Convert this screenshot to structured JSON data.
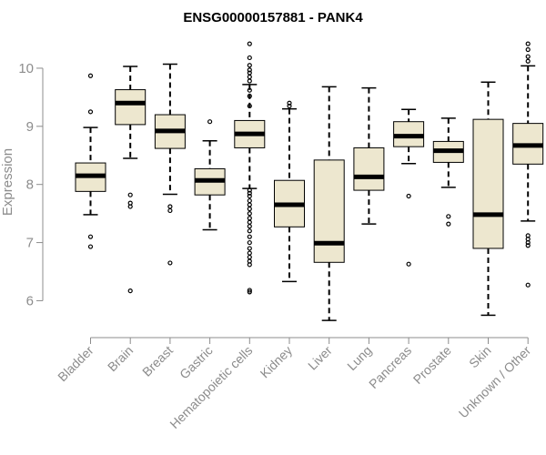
{
  "chart_data": {
    "type": "box",
    "title": "ENSG00000157881 - PANK4",
    "xlabel": "",
    "ylabel": "Expression",
    "ylim": [
      5.6,
      10.5
    ],
    "yticks": [
      6,
      7,
      8,
      9,
      10
    ],
    "grid": false,
    "colors": {
      "box_fill": "#ede7cf",
      "outline": "#000000",
      "axis": "#8c8c8c"
    },
    "categories": [
      "Bladder",
      "Brain",
      "Breast",
      "Gastric",
      "Hematopoietic cells",
      "Kidney",
      "Liver",
      "Lung",
      "Pancreas",
      "Prostate",
      "Skin",
      "Unknown / Other"
    ],
    "boxes": [
      {
        "category": "Bladder",
        "whisker_low": 7.48,
        "q1": 7.88,
        "median": 8.15,
        "q3": 8.37,
        "whisker_high": 8.98,
        "outliers": [
          9.87,
          9.25,
          7.1,
          6.93
        ]
      },
      {
        "category": "Brain",
        "whisker_low": 8.45,
        "q1": 9.03,
        "median": 9.4,
        "q3": 9.63,
        "whisker_high": 10.03,
        "outliers": [
          7.82,
          7.68,
          7.62,
          6.17
        ]
      },
      {
        "category": "Breast",
        "whisker_low": 7.83,
        "q1": 8.62,
        "median": 8.92,
        "q3": 9.2,
        "whisker_high": 10.07,
        "outliers": [
          7.62,
          7.55,
          6.65
        ]
      },
      {
        "category": "Gastric",
        "whisker_low": 7.22,
        "q1": 7.82,
        "median": 8.07,
        "q3": 8.27,
        "whisker_high": 8.75,
        "outliers": [
          9.08
        ]
      },
      {
        "category": "Hematopoietic cells",
        "whisker_low": 7.93,
        "q1": 8.63,
        "median": 8.87,
        "q3": 9.1,
        "whisker_high": 9.72,
        "outliers": [
          10.42,
          10.18,
          10.05,
          9.97,
          9.92,
          9.85,
          9.78,
          9.62,
          9.52,
          9.35,
          7.9,
          7.85,
          7.8,
          7.72,
          7.65,
          7.58,
          7.5,
          7.42,
          7.35,
          7.28,
          7.2,
          7.1,
          7.0,
          6.9,
          6.82,
          6.75,
          6.68,
          6.62,
          6.18,
          6.15
        ]
      },
      {
        "category": "Kidney",
        "whisker_low": 6.33,
        "q1": 7.27,
        "median": 7.65,
        "q3": 8.07,
        "whisker_high": 9.3,
        "outliers": [
          9.4,
          9.35
        ]
      },
      {
        "category": "Liver",
        "whisker_low": 5.66,
        "q1": 6.66,
        "median": 6.99,
        "q3": 8.42,
        "whisker_high": 9.68,
        "outliers": []
      },
      {
        "category": "Lung",
        "whisker_low": 7.32,
        "q1": 7.9,
        "median": 8.13,
        "q3": 8.63,
        "whisker_high": 9.66,
        "outliers": []
      },
      {
        "category": "Pancreas",
        "whisker_low": 8.36,
        "q1": 8.65,
        "median": 8.83,
        "q3": 9.08,
        "whisker_high": 9.29,
        "outliers": [
          7.8,
          6.63
        ]
      },
      {
        "category": "Prostate",
        "whisker_low": 7.95,
        "q1": 8.38,
        "median": 8.58,
        "q3": 8.74,
        "whisker_high": 9.14,
        "outliers": [
          7.45,
          7.32
        ]
      },
      {
        "category": "Skin",
        "whisker_low": 5.75,
        "q1": 6.9,
        "median": 7.48,
        "q3": 9.12,
        "whisker_high": 9.76,
        "outliers": []
      },
      {
        "category": "Unknown / Other",
        "whisker_low": 7.37,
        "q1": 8.35,
        "median": 8.67,
        "q3": 9.05,
        "whisker_high": 10.04,
        "outliers": [
          10.42,
          10.32,
          10.2,
          10.12,
          7.12,
          7.06,
          7.0,
          6.95,
          6.27
        ]
      }
    ]
  }
}
